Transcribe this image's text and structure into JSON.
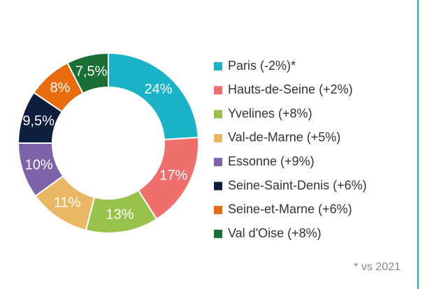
{
  "chart_data": {
    "type": "pie",
    "categories": [
      "Paris (-2%)*",
      "Hauts-de-Seine (+2%)",
      "Yvelines (+8%)",
      "Val-de-Marne (+5%)",
      "Essonne (+9%)",
      "Seine-Saint-Denis (+6%)",
      "Seine-et-Marne (+6%)",
      "Val d'Oise (+8%)"
    ],
    "values": [
      24,
      17,
      13,
      11,
      10,
      9.5,
      8,
      7.5
    ],
    "value_labels": [
      "24%",
      "17%",
      "13%",
      "11%",
      "10%",
      "9,5%",
      "8%",
      "7,5%"
    ],
    "colors": [
      "#1ab3c6",
      "#ef6f6c",
      "#99c24d",
      "#eab765",
      "#7f63a9",
      "#0d1f3c",
      "#e86b0e",
      "#1a7034"
    ],
    "legend": "right",
    "footnote": "* vs 2021"
  }
}
